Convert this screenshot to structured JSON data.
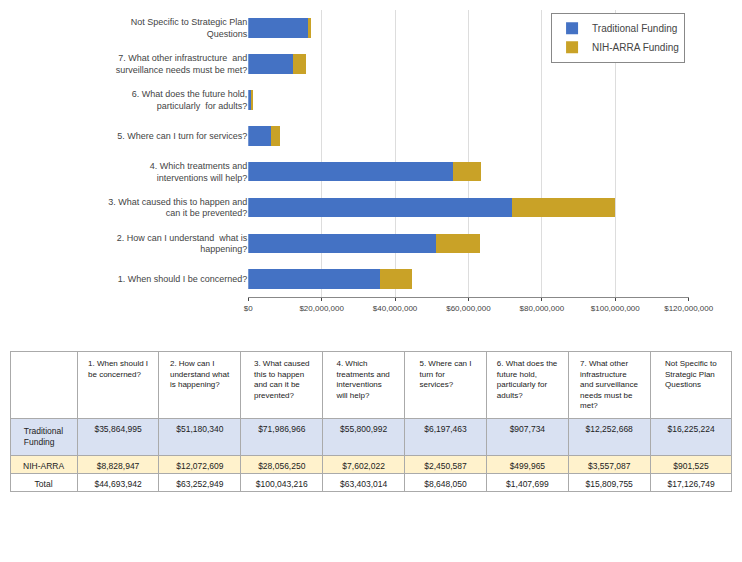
{
  "chart_data": [
    {
      "type": "bar",
      "orientation": "horizontal",
      "stacked": true,
      "categories": [
        "1. When should I be concerned?",
        "2. How can I understand  what is\nhappening?",
        "3. What caused this to happen and\ncan it be prevented?",
        "4. Which treatments and\ninterventions will help?",
        "5. Where can I turn for services?",
        "6. What does the future hold,\n particularly  for adults?",
        "7. What other infrastructure  and\nsurveillance needs must be met?",
        "Not Specific to Strategic Plan\nQuestions"
      ],
      "series": [
        {
          "name": "Traditional Funding",
          "color": "#4472C4",
          "values": [
            35864995,
            51180340,
            71986966,
            55800992,
            6197463,
            907734,
            12252668,
            16225224
          ]
        },
        {
          "name": "NIH-ARRA Funding",
          "color": "#C9A227",
          "values": [
            8828947,
            12072609,
            28056250,
            7602022,
            2450587,
            499965,
            3557087,
            901525
          ]
        }
      ],
      "xlim": [
        0,
        120000000
      ],
      "xticks": [
        {
          "value": 0,
          "label": "$0"
        },
        {
          "value": 20000000,
          "label": "$20,000,000"
        },
        {
          "value": 40000000,
          "label": "$40,000,000"
        },
        {
          "value": 60000000,
          "label": "$60,000,000"
        },
        {
          "value": 80000000,
          "label": "$80,000,000"
        },
        {
          "value": 100000000,
          "label": "$100,000,000"
        },
        {
          "value": 120000000,
          "label": "$120,000,000"
        }
      ],
      "grid": true,
      "legend": "upper right"
    },
    {
      "type": "table",
      "categories": [
        "1. When should I\nbe concerned?",
        "2. How can I\nunderstand what\nis happening?",
        "3. What caused\nthis to happen\nand can it be\nprevented?",
        "4. Which\ntreatments and\ninterventions\nwill help?",
        "5. Where can I\nturn for\nservices?",
        "6. What does the\nfuture hold,\nparticularly for\nadults?",
        "7. What other\ninfrastructure\nand surveillance\nneeds must be\nmet?",
        "Not Specific to\nStrategic Plan\nQuestions"
      ],
      "series": [
        {
          "name": "Traditional\nFunding",
          "color": "#D9E1F2",
          "values": [
            35864995,
            51180340,
            71986966,
            55800992,
            6197463,
            907734,
            12252668,
            16225224
          ],
          "value_labels": [
            "$35,864,995",
            "$51,180,340",
            "$71,986,966",
            "$55,800,992",
            "$6,197,463",
            "$907,734",
            "$12,252,668",
            "$16,225,224"
          ]
        },
        {
          "name": "NIH-ARRA",
          "color": "#FFF2CC",
          "values": [
            8828947,
            12072609,
            28056250,
            7602022,
            2450587,
            499965,
            3557087,
            901525
          ],
          "value_labels": [
            "$8,828,947",
            "$12,072,609",
            "$28,056,250",
            "$7,602,022",
            "$2,450,587",
            "$499,965",
            "$3,557,087",
            "$901,525"
          ]
        },
        {
          "name": "Total",
          "color": "#FFFFFF",
          "values": [
            44693942,
            63252949,
            100043216,
            63403014,
            8648050,
            1407699,
            15809755,
            17126749
          ],
          "value_labels": [
            "$44,693,942",
            "$63,252,949",
            "$100,043,216",
            "$63,403,014",
            "$8,648,050",
            "$1,407,699",
            "$15,809,755",
            "$17,126,749"
          ]
        }
      ]
    }
  ]
}
